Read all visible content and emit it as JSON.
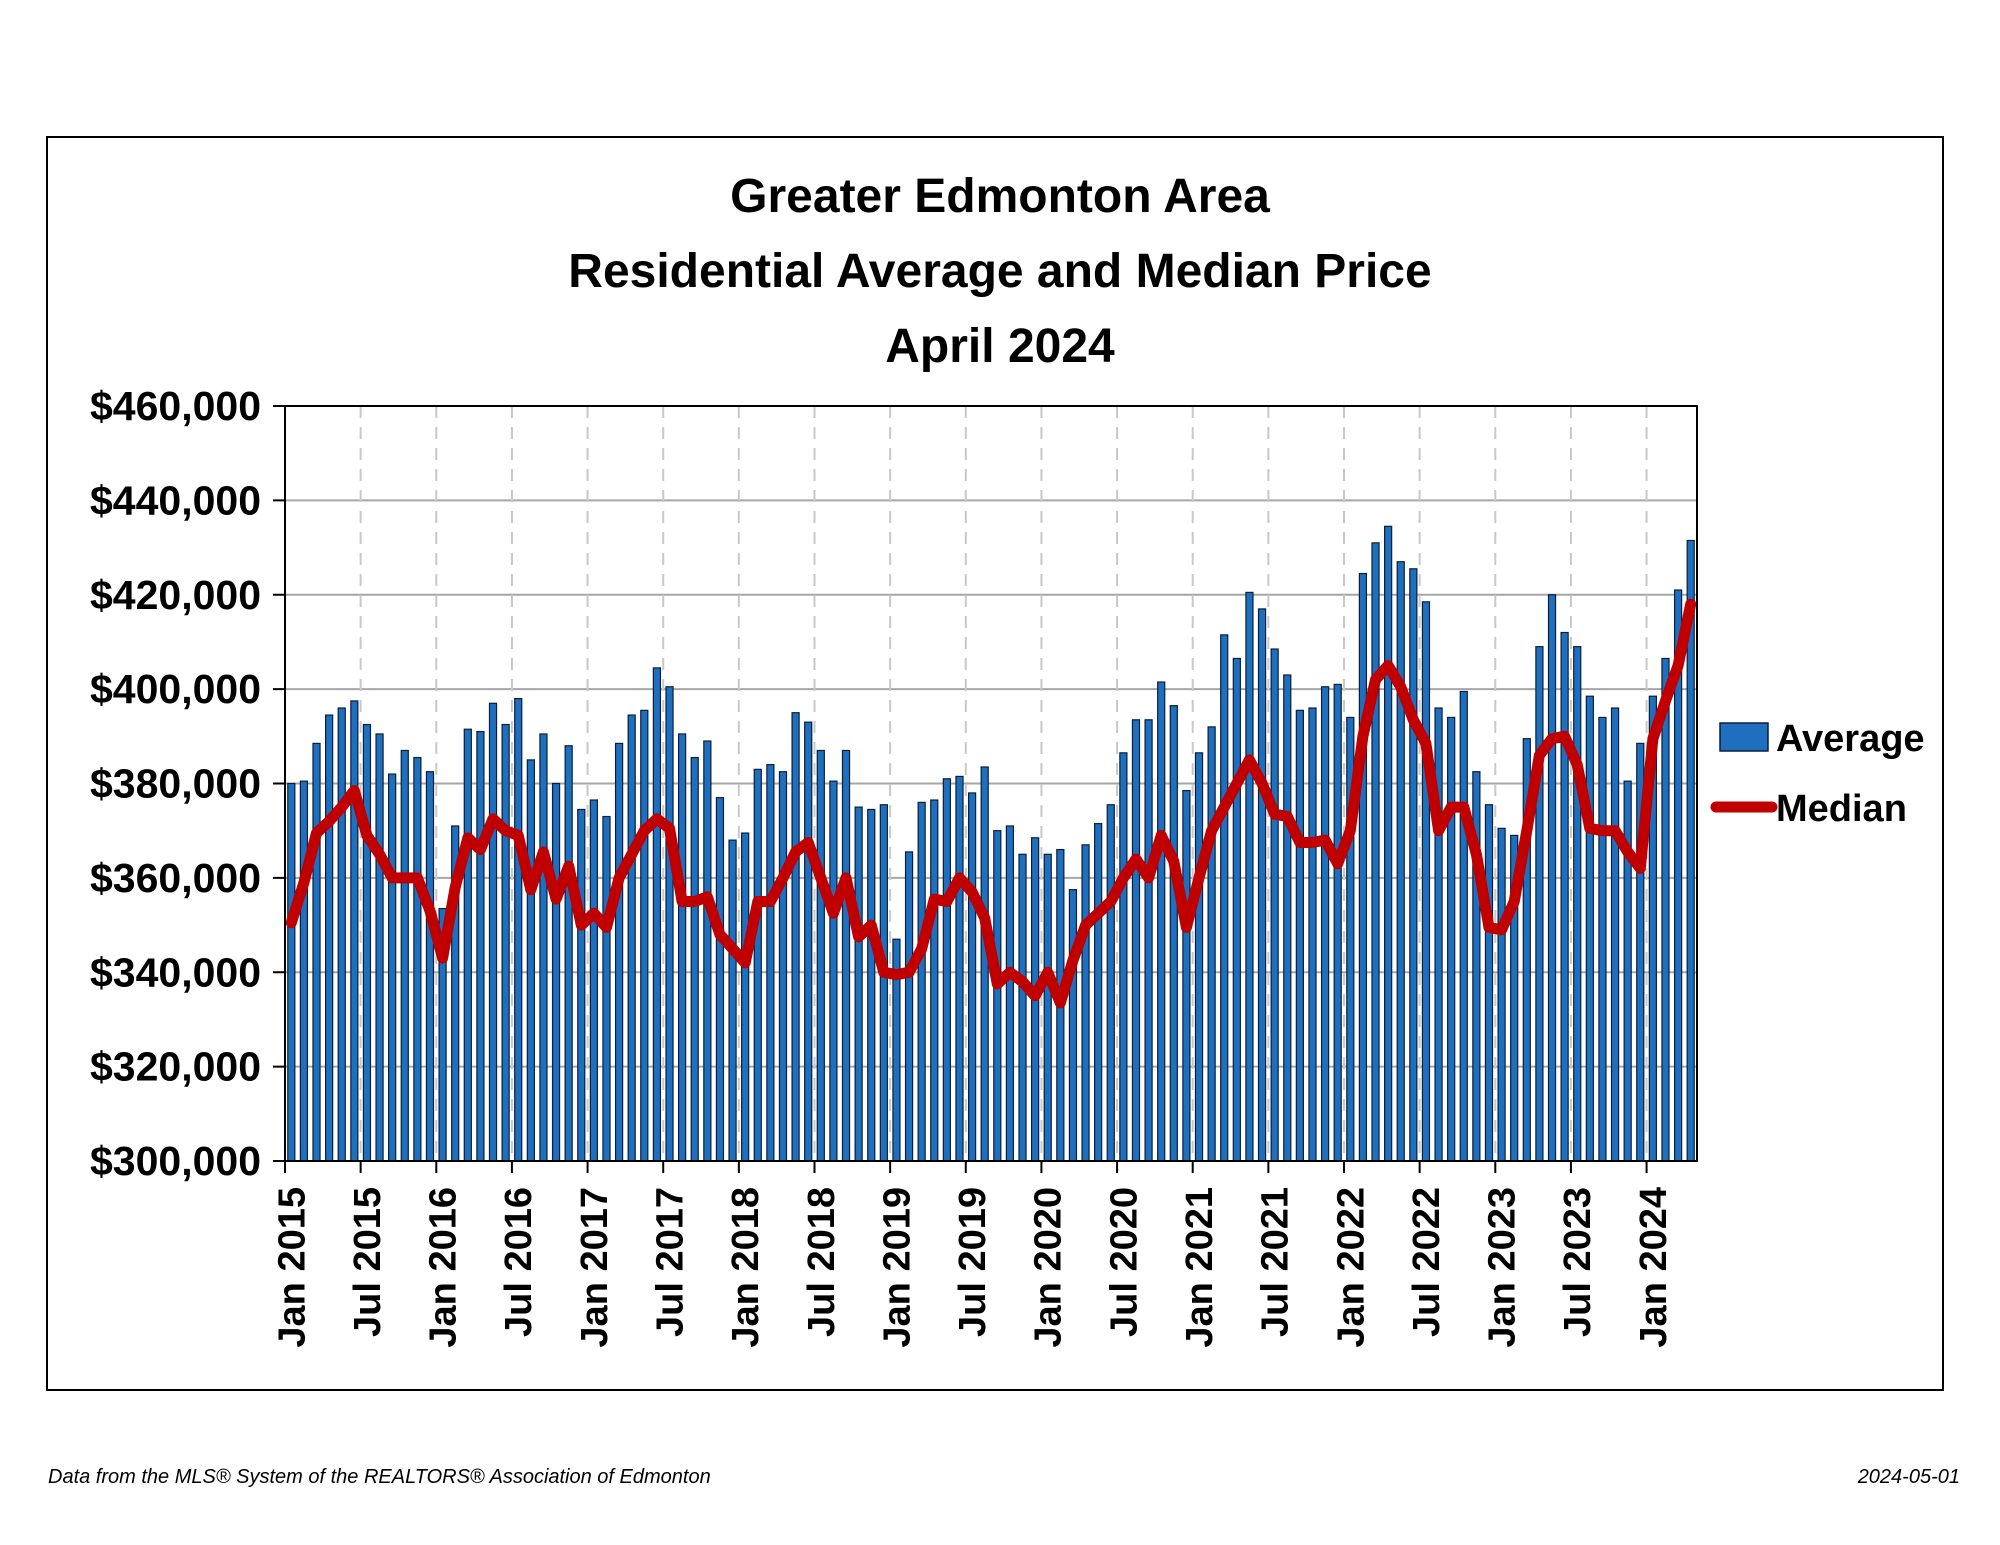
{
  "chart_data": {
    "type": "bar",
    "title_lines": [
      "Greater Edmonton Area",
      "Residential Average and Median Price",
      "April 2024"
    ],
    "ylim": [
      300000,
      460000
    ],
    "yticks": [
      {
        "value": 460000,
        "label": "$460,000"
      },
      {
        "value": 440000,
        "label": "$440,000"
      },
      {
        "value": 420000,
        "label": "$420,000"
      },
      {
        "value": 400000,
        "label": "$400,000"
      },
      {
        "value": 380000,
        "label": "$380,000"
      },
      {
        "value": 360000,
        "label": "$360,000"
      },
      {
        "value": 340000,
        "label": "$340,000"
      },
      {
        "value": 320000,
        "label": "$320,000"
      },
      {
        "value": 300000,
        "label": "$300,000"
      }
    ],
    "xticks": [
      {
        "index": 0,
        "label": "Jan 2015"
      },
      {
        "index": 6,
        "label": "Jul 2015"
      },
      {
        "index": 12,
        "label": "Jan 2016"
      },
      {
        "index": 18,
        "label": "Jul 2016"
      },
      {
        "index": 24,
        "label": "Jan 2017"
      },
      {
        "index": 30,
        "label": "Jul 2017"
      },
      {
        "index": 36,
        "label": "Jan 2018"
      },
      {
        "index": 42,
        "label": "Jul 2018"
      },
      {
        "index": 48,
        "label": "Jan 2019"
      },
      {
        "index": 54,
        "label": "Jul 2019"
      },
      {
        "index": 60,
        "label": "Jan 2020"
      },
      {
        "index": 66,
        "label": "Jul 2020"
      },
      {
        "index": 72,
        "label": "Jan 2021"
      },
      {
        "index": 78,
        "label": "Jul 2021"
      },
      {
        "index": 84,
        "label": "Jan 2022"
      },
      {
        "index": 90,
        "label": "Jul 2022"
      },
      {
        "index": 96,
        "label": "Jan 2023"
      },
      {
        "index": 102,
        "label": "Jul 2023"
      },
      {
        "index": 108,
        "label": "Jan 2024"
      }
    ],
    "grid": {
      "horizontal": "solid",
      "vertical": "dashed"
    },
    "legend_position": "right",
    "series": [
      {
        "name": "Average",
        "type": "bar",
        "color": "#1F6FBF",
        "values": [
          380000,
          380500,
          388500,
          394500,
          396000,
          397500,
          392500,
          390500,
          382000,
          387000,
          385500,
          382500,
          353500,
          371000,
          391500,
          391000,
          397000,
          392500,
          398000,
          385000,
          390500,
          380000,
          388000,
          374500,
          376500,
          373000,
          388500,
          394500,
          395500,
          404500,
          400500,
          390500,
          385500,
          389000,
          377000,
          368000,
          369500,
          383000,
          384000,
          382500,
          395000,
          393000,
          387000,
          380500,
          387000,
          375000,
          374500,
          375500,
          347000,
          365500,
          376000,
          376500,
          381000,
          381500,
          378000,
          383500,
          370000,
          371000,
          365000,
          368500,
          365000,
          366000,
          357500,
          367000,
          371500,
          375500,
          386500,
          393500,
          393500,
          401500,
          396500,
          378500,
          386500,
          392000,
          411500,
          406500,
          420500,
          417000,
          408500,
          403000,
          395500,
          396000,
          400500,
          401000,
          394000,
          424500,
          431000,
          434500,
          427000,
          425500,
          418500,
          396000,
          394000,
          399500,
          382500,
          375500,
          370500,
          369000,
          389500,
          409000,
          420000,
          412000,
          409000,
          398500,
          394000,
          396000,
          380500,
          388500,
          398500,
          406500,
          421000,
          431500
        ]
      },
      {
        "name": "Median",
        "type": "line",
        "color": "#C00000",
        "values": [
          350500,
          359000,
          369500,
          372000,
          375000,
          378500,
          369000,
          365000,
          360000,
          360000,
          360000,
          353000,
          343000,
          358000,
          368500,
          366000,
          372500,
          370000,
          369000,
          357500,
          365500,
          355500,
          362500,
          350000,
          352500,
          349500,
          360000,
          365000,
          370000,
          372500,
          370500,
          355000,
          355000,
          356000,
          348000,
          345000,
          342000,
          355000,
          355000,
          360000,
          365500,
          367500,
          360000,
          352500,
          360000,
          347500,
          350000,
          340000,
          339500,
          340000,
          345000,
          355500,
          355000,
          360000,
          357000,
          351500,
          337500,
          340000,
          338000,
          335000,
          340000,
          333500,
          342500,
          350000,
          352500,
          355000,
          360000,
          364000,
          360000,
          369000,
          363500,
          349500,
          360000,
          370000,
          375000,
          380000,
          385000,
          380000,
          373500,
          373000,
          367500,
          367500,
          368000,
          363000,
          370000,
          390000,
          402000,
          405000,
          400500,
          393500,
          388500,
          370000,
          375000,
          375000,
          365000,
          349500,
          349000,
          355000,
          370000,
          386000,
          389500,
          390000,
          384000,
          370500,
          370000,
          370000,
          365500,
          362000,
          389500,
          397500,
          405000,
          418000
        ]
      }
    ]
  },
  "footnote": {
    "source": "Data from the MLS® System of the REALTORS® Association of Edmonton",
    "date": "2024-05-01"
  }
}
